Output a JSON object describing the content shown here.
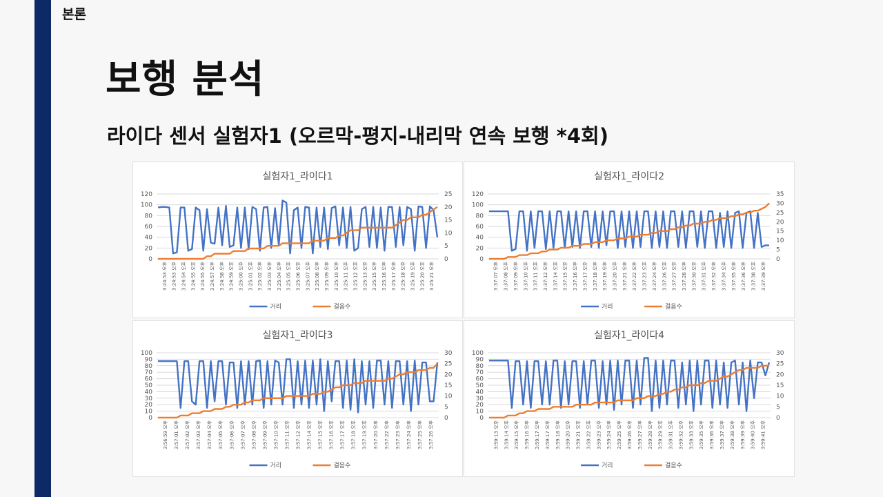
{
  "section_label": "본론",
  "page_title": "보행 분석",
  "subtitle": "라이다 센서 실험자1 (오르막-평지-내리막 연속 보행 *4회)",
  "colors": {
    "distance": "#4472c4",
    "steps": "#ed7d31",
    "sidebar": "#0e2a66"
  },
  "chart_data": [
    {
      "type": "line",
      "title": "실험자1_라이다1",
      "legend": [
        "거리",
        "걸음수"
      ],
      "legend_position": "bottom",
      "grid": true,
      "y_left": {
        "min": 0,
        "max": 120,
        "ticks": [
          0,
          20,
          40,
          60,
          80,
          100,
          120
        ]
      },
      "y_right": {
        "min": 0,
        "max": 25,
        "ticks": [
          0,
          5,
          10,
          15,
          20,
          25
        ]
      },
      "x_ticks": [
        "3:24:53 오후",
        "3:24:53 오후",
        "3:24:54 오후",
        "3:24:55 오후",
        "3:24:55 오후",
        "3:24:57 오후",
        "3:24:58 오후",
        "3:24:59 오후",
        "3:25:00 오후",
        "3:25:01 오후",
        "3:25:02 오후",
        "3:25:03 오후",
        "3:25:04 오후",
        "3:25:05 오후",
        "3:25:06 오후",
        "3:25:07 오후",
        "3:25:08 오후",
        "3:25:09 오후",
        "3:25:10 오후",
        "3:25:11 오후",
        "3:25:12 오후",
        "3:25:13 오후",
        "3:25:15 오후",
        "3:25:16 오후",
        "3:25:17 오후",
        "3:25:18 오후",
        "3:25:19 오후",
        "3:25:20 오후",
        "3:25:21 오후"
      ],
      "series": [
        {
          "name": "거리",
          "axis": "left",
          "values": [
            95,
            96,
            96,
            95,
            10,
            12,
            95,
            95,
            15,
            18,
            95,
            90,
            15,
            92,
            30,
            28,
            95,
            25,
            98,
            22,
            25,
            95,
            20,
            95,
            18,
            96,
            92,
            15,
            95,
            96,
            20,
            94,
            25,
            108,
            104,
            10,
            90,
            95,
            20,
            96,
            95,
            10,
            95,
            22,
            95,
            18,
            94,
            97,
            25,
            95,
            20,
            96,
            15,
            20,
            92,
            96,
            22,
            96,
            20,
            95,
            15,
            96,
            96,
            22,
            96,
            25,
            96,
            92,
            15,
            97,
            96,
            20,
            97,
            90,
            40
          ]
        },
        {
          "name": "걸음수",
          "axis": "right",
          "values": [
            0,
            0,
            0,
            0,
            0,
            0,
            0,
            0,
            0,
            0,
            0,
            0,
            0,
            1,
            1,
            2,
            2,
            2,
            2,
            2,
            3,
            3,
            3,
            3,
            4,
            4,
            4,
            4,
            4,
            5,
            5,
            5,
            5,
            6,
            6,
            6,
            6,
            6,
            6,
            6,
            6,
            7,
            7,
            7,
            7,
            8,
            8,
            8,
            9,
            9,
            10,
            11,
            11,
            11,
            12,
            12,
            12,
            12,
            12,
            12,
            12,
            12,
            12,
            13,
            14,
            15,
            15,
            16,
            16,
            16,
            17,
            17,
            18,
            19,
            20
          ]
        }
      ]
    },
    {
      "type": "line",
      "title": "실험자1_라이다2",
      "legend": [
        "거리",
        "걸음수"
      ],
      "legend_position": "bottom",
      "grid": true,
      "y_left": {
        "min": 0,
        "max": 120,
        "ticks": [
          0,
          20,
          40,
          60,
          80,
          100,
          120
        ]
      },
      "y_right": {
        "min": 0,
        "max": 35,
        "ticks": [
          0,
          5,
          10,
          15,
          20,
          25,
          30,
          35
        ]
      },
      "x_ticks": [
        "3:37:07 오후",
        "3:37:08 오후",
        "3:37:09 오후",
        "3:37:10 오후",
        "3:37:11 오후",
        "3:37:12 오후",
        "3:37:14 오후",
        "3:37:15 오후",
        "3:37:16 오후",
        "3:37:17 오후",
        "3:37:18 오후",
        "3:37:19 오후",
        "3:37:20 오후",
        "3:37:21 오후",
        "3:37:22 오후",
        "3:37:23 오후",
        "3:37:24 오후",
        "3:37:26 오후",
        "3:37:27 오후",
        "3:37:28 오후",
        "3:37:30 오후",
        "3:37:31 오후",
        "3:37:32 오후",
        "3:37:34 오후",
        "3:37:35 오후",
        "3:37:36 오후",
        "3:37:38 오후",
        "3:37:39 오후"
      ],
      "series": [
        {
          "name": "거리",
          "axis": "left",
          "values": [
            88,
            88,
            88,
            88,
            88,
            88,
            15,
            18,
            88,
            88,
            15,
            88,
            20,
            88,
            88,
            18,
            88,
            20,
            88,
            88,
            20,
            88,
            22,
            88,
            20,
            88,
            88,
            22,
            88,
            20,
            88,
            25,
            88,
            88,
            20,
            88,
            22,
            88,
            20,
            88,
            22,
            88,
            88,
            20,
            88,
            22,
            88,
            20,
            88,
            88,
            22,
            88,
            20,
            88,
            88,
            22,
            88,
            20,
            88,
            88,
            20,
            85,
            22,
            88,
            20,
            85,
            88,
            20,
            85,
            88,
            20,
            85,
            22,
            25,
            25
          ]
        },
        {
          "name": "걸음수",
          "axis": "right",
          "values": [
            0,
            0,
            0,
            0,
            0,
            1,
            1,
            1,
            2,
            2,
            2,
            3,
            3,
            3,
            4,
            4,
            5,
            5,
            5,
            6,
            6,
            6,
            7,
            7,
            7,
            8,
            8,
            8,
            9,
            9,
            9,
            10,
            10,
            10,
            11,
            11,
            11,
            12,
            12,
            12,
            13,
            13,
            13,
            14,
            14,
            15,
            15,
            15,
            16,
            16,
            17,
            17,
            18,
            18,
            19,
            19,
            19,
            20,
            20,
            21,
            21,
            22,
            22,
            22,
            23,
            23,
            24,
            24,
            25,
            25,
            26,
            26,
            27,
            28,
            30
          ]
        }
      ]
    },
    {
      "type": "line",
      "title": "실험자1_라이다3",
      "legend": [
        "거리",
        "걸음수"
      ],
      "legend_position": "bottom",
      "grid": true,
      "y_left": {
        "min": 0,
        "max": 100,
        "ticks": [
          0,
          10,
          20,
          30,
          40,
          50,
          60,
          70,
          80,
          90,
          100
        ]
      },
      "y_right": {
        "min": 0,
        "max": 30,
        "ticks": [
          0,
          5,
          10,
          15,
          20,
          25,
          30
        ]
      },
      "x_ticks": [
        "3:56:59 오후",
        "3:57:01 오후",
        "3:57:02 오후",
        "3:57:03 오후",
        "3:57:04 오후",
        "3:57:05 오후",
        "3:57:06 오후",
        "3:57:07 오후",
        "3:57:08 오후",
        "3:57:09 오후",
        "3:57:10 오후",
        "3:57:11 오후",
        "3:57:12 오후",
        "3:57:14 오후",
        "3:57:15 오후",
        "3:57:16 오후",
        "3:57:17 오후",
        "3:57:18 오후",
        "3:57:19 오후",
        "3:57:20 오후",
        "3:57:22 오후",
        "3:57:23 오후",
        "3:57:24 오후",
        "3:57:25 오후",
        "3:57:26 오후"
      ],
      "series": [
        {
          "name": "거리",
          "axis": "left",
          "values": [
            87,
            87,
            87,
            87,
            87,
            87,
            15,
            87,
            87,
            25,
            20,
            87,
            87,
            15,
            87,
            25,
            87,
            87,
            20,
            85,
            85,
            15,
            87,
            20,
            87,
            20,
            87,
            88,
            15,
            87,
            20,
            88,
            85,
            20,
            90,
            90,
            15,
            87,
            20,
            88,
            15,
            88,
            20,
            90,
            10,
            87,
            25,
            87,
            87,
            15,
            88,
            12,
            90,
            8,
            87,
            20,
            87,
            15,
            88,
            88,
            20,
            87,
            15,
            87,
            87,
            20,
            87,
            10,
            88,
            20,
            85,
            85,
            25,
            25,
            85
          ]
        },
        {
          "name": "걸음수",
          "axis": "right",
          "values": [
            0,
            0,
            0,
            0,
            0,
            0,
            1,
            1,
            1,
            2,
            2,
            2,
            3,
            3,
            3,
            4,
            4,
            4,
            5,
            5,
            6,
            6,
            6,
            7,
            7,
            8,
            8,
            8,
            9,
            9,
            9,
            9,
            9,
            9,
            10,
            10,
            10,
            10,
            10,
            10,
            10,
            11,
            11,
            11,
            12,
            12,
            13,
            14,
            14,
            15,
            15,
            15,
            16,
            16,
            16,
            17,
            17,
            17,
            17,
            17,
            17,
            18,
            18,
            19,
            20,
            20,
            21,
            21,
            21,
            22,
            22,
            22,
            23,
            23,
            25
          ]
        }
      ]
    },
    {
      "type": "line",
      "title": "실험자1_라이다4",
      "legend": [
        "거리",
        "걸음수"
      ],
      "legend_position": "bottom",
      "grid": true,
      "y_left": {
        "min": 0,
        "max": 100,
        "ticks": [
          0,
          10,
          20,
          30,
          40,
          50,
          60,
          70,
          80,
          90,
          100
        ]
      },
      "y_right": {
        "min": 0,
        "max": 30,
        "ticks": [
          0,
          5,
          10,
          15,
          20,
          25,
          30
        ]
      },
      "x_ticks": [
        "3:59:13 오후",
        "3:59:14 오후",
        "3:59:15 오후",
        "3:59:16 오후",
        "3:59:17 오후",
        "3:59:17 오후",
        "3:59:18 오후",
        "3:59:20 오후",
        "3:59:21 오후",
        "3:59:22 오후",
        "3:59:23 오후",
        "3:59:24 오후",
        "3:59:25 오후",
        "3:59:26 오후",
        "3:59:27 오후",
        "3:59:28 오후",
        "3:59:29 오후",
        "3:59:31 오후",
        "3:59:32 오후",
        "3:59:33 오후",
        "3:59:35 오후",
        "3:59:36 오후",
        "3:59:37 오후",
        "3:59:38 오후",
        "3:59:39 오후",
        "3:59:40 오후",
        "3:59:41 오후"
      ],
      "series": [
        {
          "name": "거리",
          "axis": "left",
          "values": [
            88,
            88,
            88,
            88,
            88,
            88,
            15,
            87,
            87,
            20,
            87,
            15,
            87,
            87,
            20,
            87,
            20,
            88,
            88,
            15,
            87,
            20,
            87,
            87,
            15,
            87,
            20,
            88,
            88,
            15,
            87,
            20,
            88,
            12,
            88,
            20,
            88,
            88,
            15,
            88,
            20,
            92,
            92,
            10,
            88,
            15,
            88,
            20,
            88,
            88,
            15,
            85,
            20,
            88,
            10,
            88,
            20,
            88,
            88,
            15,
            88,
            20,
            85,
            15,
            85,
            88,
            20,
            85,
            10,
            88,
            30,
            85,
            85,
            65,
            85
          ]
        },
        {
          "name": "걸음수",
          "axis": "right",
          "values": [
            0,
            0,
            0,
            0,
            0,
            1,
            1,
            1,
            2,
            2,
            3,
            3,
            3,
            4,
            4,
            4,
            4,
            5,
            5,
            5,
            5,
            5,
            5,
            6,
            6,
            6,
            6,
            6,
            7,
            7,
            7,
            7,
            7,
            7,
            8,
            8,
            8,
            8,
            8,
            9,
            9,
            9,
            10,
            10,
            10,
            11,
            11,
            12,
            12,
            13,
            13,
            14,
            14,
            15,
            15,
            15,
            16,
            16,
            17,
            17,
            17,
            18,
            19,
            19,
            20,
            21,
            22,
            22,
            23,
            23,
            23,
            23,
            24,
            24,
            24
          ]
        }
      ]
    }
  ]
}
